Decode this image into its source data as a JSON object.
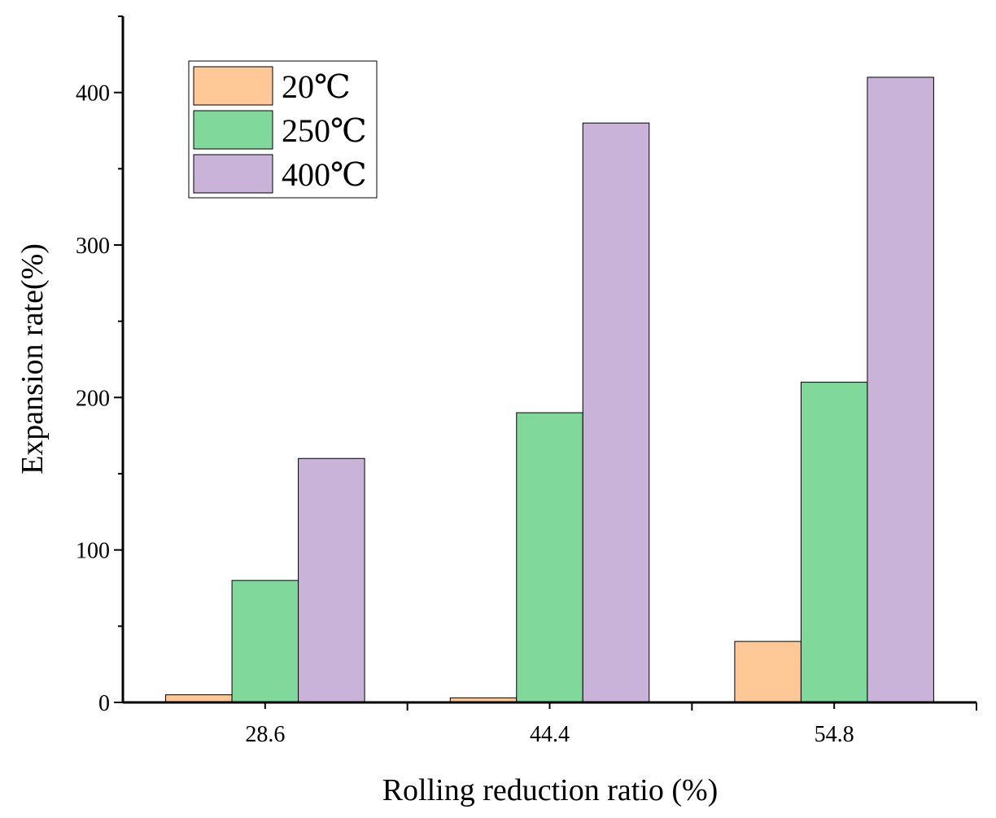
{
  "chart_data": {
    "type": "bar",
    "title": "",
    "xlabel": "Rolling reduction ratio (%)",
    "ylabel": "Expansion rate(%)",
    "categories": [
      "28.6",
      "44.4",
      "54.8"
    ],
    "series": [
      {
        "name": "20℃",
        "color": "#FFC896",
        "values": [
          5,
          3,
          40
        ]
      },
      {
        "name": "250℃",
        "color": "#80D89A",
        "values": [
          80,
          190,
          210
        ]
      },
      {
        "name": "400℃",
        "color": "#C9B3D9",
        "values": [
          160,
          380,
          410
        ]
      }
    ],
    "ylim": [
      0,
      450
    ],
    "yticks": [
      "0",
      "100",
      "200",
      "300",
      "400"
    ],
    "grid": false,
    "legend_position": "top-left"
  }
}
